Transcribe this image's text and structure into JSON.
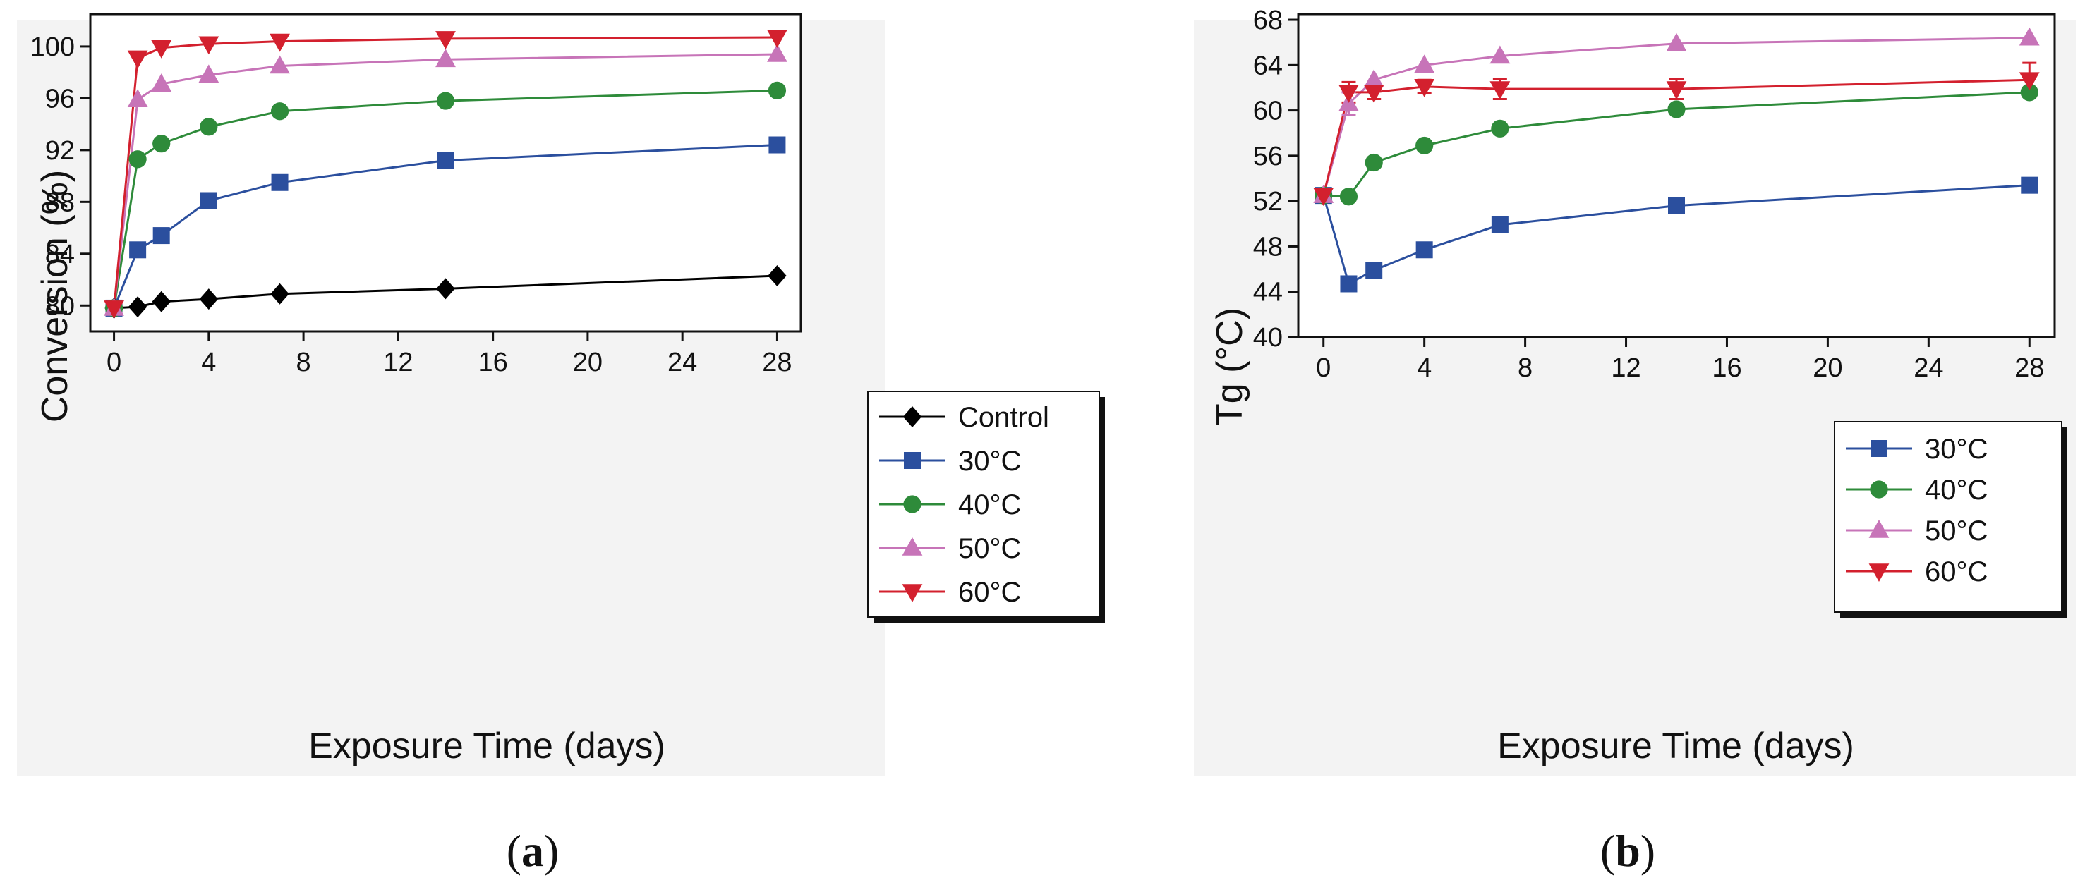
{
  "chart_data": [
    {
      "type": "line",
      "panel_label_open": "(",
      "panel_label_letter": "a",
      "panel_label_close": ")",
      "xlabel": "Exposure Time (days)",
      "ylabel": "Conversion (%)",
      "xlim": [
        -1,
        29
      ],
      "ylim": [
        78,
        102.5
      ],
      "xticks": [
        0,
        4,
        8,
        12,
        16,
        20,
        24,
        28
      ],
      "yticks": [
        80,
        84,
        88,
        92,
        96,
        100
      ],
      "legend_position": "bottom-right",
      "x": [
        0,
        1,
        2,
        4,
        7,
        14,
        28
      ],
      "series": [
        {
          "name": "Control",
          "color": "#000000",
          "marker": "diamond",
          "values": [
            79.8,
            79.9,
            80.3,
            80.5,
            80.9,
            81.3,
            82.3
          ]
        },
        {
          "name": "30°C",
          "color": "#2b4f9e",
          "marker": "square",
          "values": [
            79.8,
            84.3,
            85.4,
            88.1,
            89.5,
            91.2,
            92.4
          ]
        },
        {
          "name": "40°C",
          "color": "#2e8b3a",
          "marker": "circle",
          "values": [
            79.8,
            91.3,
            92.5,
            93.8,
            95.0,
            95.8,
            96.6
          ]
        },
        {
          "name": "50°C",
          "color": "#c774b8",
          "marker": "triangle-up",
          "values": [
            79.8,
            95.9,
            97.1,
            97.8,
            98.5,
            99.0,
            99.4
          ]
        },
        {
          "name": "60°C",
          "color": "#d3202e",
          "marker": "triangle-down",
          "values": [
            79.8,
            99.1,
            99.9,
            100.2,
            100.4,
            100.6,
            100.7
          ]
        }
      ]
    },
    {
      "type": "line",
      "panel_label_open": "(",
      "panel_label_letter": "b",
      "panel_label_close": ")",
      "xlabel": "Exposure Time (days)",
      "ylabel": "Tg (°C)",
      "xlim": [
        -1,
        29
      ],
      "ylim": [
        40,
        68.5
      ],
      "xticks": [
        0,
        4,
        8,
        12,
        16,
        20,
        24,
        28
      ],
      "yticks": [
        40,
        44,
        48,
        52,
        56,
        60,
        64,
        68
      ],
      "legend_position": "bottom-right",
      "x": [
        0,
        1,
        2,
        4,
        7,
        14,
        28
      ],
      "series": [
        {
          "name": "30°C",
          "color": "#2b4f9e",
          "marker": "square",
          "values": [
            52.5,
            44.7,
            45.9,
            47.7,
            49.9,
            51.6,
            53.4
          ]
        },
        {
          "name": "40°C",
          "color": "#2e8b3a",
          "marker": "circle",
          "values": [
            52.5,
            52.4,
            55.4,
            56.9,
            58.4,
            60.1,
            61.6
          ]
        },
        {
          "name": "50°C",
          "color": "#c774b8",
          "marker": "triangle-up",
          "values": [
            52.5,
            60.6,
            62.7,
            64.0,
            64.8,
            65.9,
            66.4
          ]
        },
        {
          "name": "60°C",
          "color": "#d3202e",
          "marker": "triangle-down",
          "values": [
            52.5,
            61.6,
            61.6,
            62.1,
            61.9,
            61.9,
            62.7
          ]
        }
      ]
    }
  ]
}
